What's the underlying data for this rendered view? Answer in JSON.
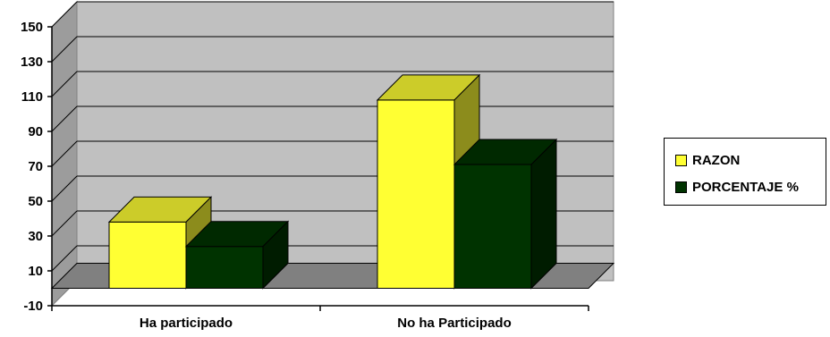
{
  "chart_data": {
    "type": "bar",
    "categories": [
      "Ha participado",
      "No ha Participado"
    ],
    "series": [
      {
        "name": "RAZON",
        "values": [
          38,
          108
        ],
        "color": "#FFFF33"
      },
      {
        "name": "PORCENTAJE %",
        "values": [
          24,
          71
        ],
        "color": "#003300"
      }
    ],
    "yticks": [
      "150",
      "130",
      "110",
      "90",
      "70",
      "50",
      "30",
      "10",
      "-10"
    ],
    "ylim": [
      -10,
      150
    ],
    "grid": true,
    "three_d": true,
    "legend_position": "right",
    "title": "",
    "xlabel": "",
    "ylabel": ""
  }
}
